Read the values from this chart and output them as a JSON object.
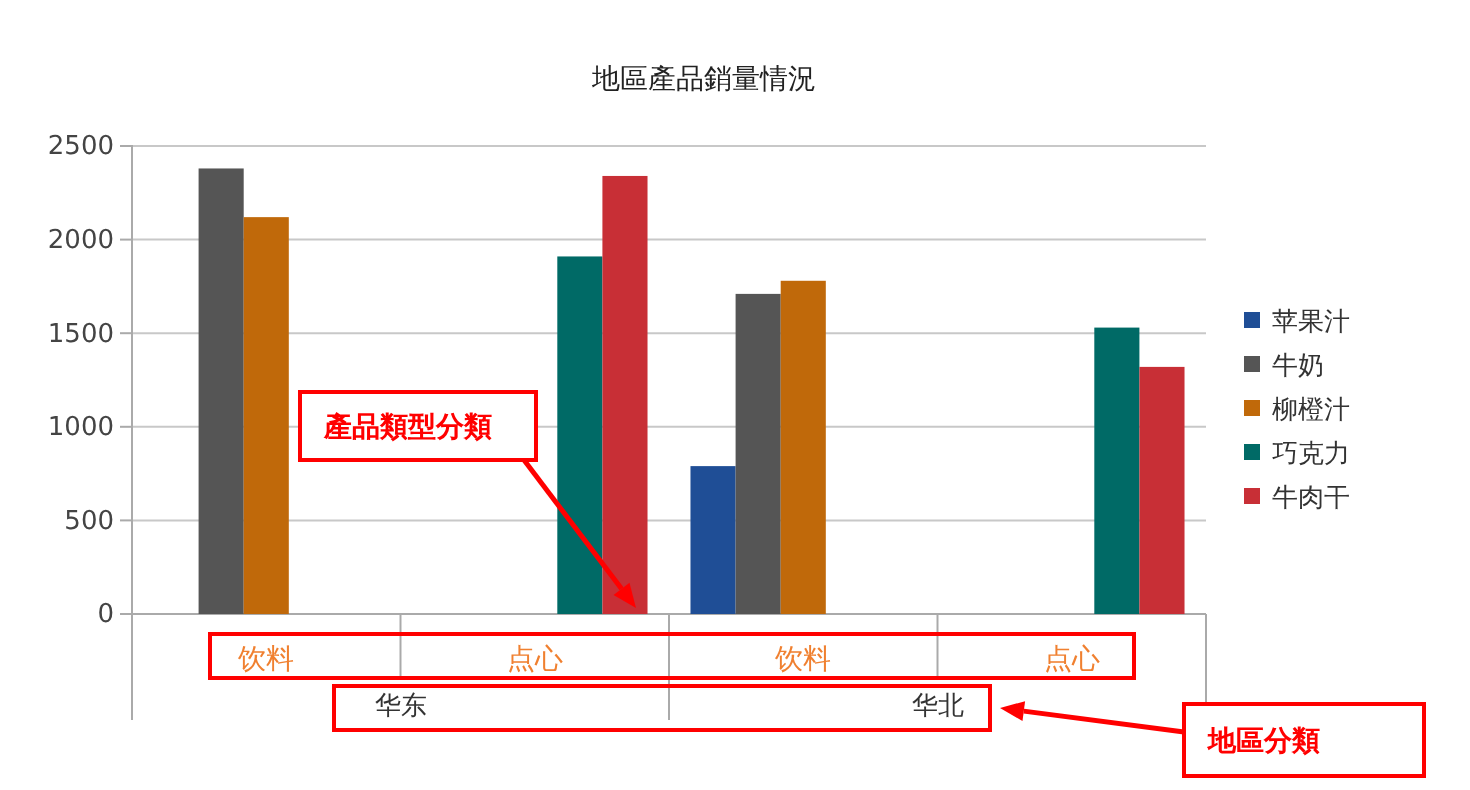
{
  "chart_data": {
    "type": "bar",
    "title": "地區產品銷量情況",
    "categories": [
      "饮料",
      "点心",
      "饮料",
      "点心"
    ],
    "series": [
      {
        "name": "苹果汁",
        "color": "#1f4e96",
        "values": [
          null,
          null,
          790,
          null
        ]
      },
      {
        "name": "牛奶",
        "color": "#555555",
        "values": [
          2380,
          null,
          1710,
          null
        ]
      },
      {
        "name": "柳橙汁",
        "color": "#c0690a",
        "values": [
          2120,
          null,
          1780,
          null
        ]
      },
      {
        "name": "巧克力",
        "color": "#006a66",
        "values": [
          null,
          1910,
          null,
          1530
        ]
      },
      {
        "name": "牛肉干",
        "color": "#c82f36",
        "values": [
          null,
          2340,
          null,
          1320
        ]
      }
    ],
    "ylim": [
      0,
      2500
    ],
    "yticks": [
      0,
      500,
      1000,
      1500,
      2000,
      2500
    ],
    "grid": "y",
    "legend": "right",
    "annotations": [
      "华东",
      "华北",
      "產品類型分類",
      "地區分類"
    ]
  }
}
